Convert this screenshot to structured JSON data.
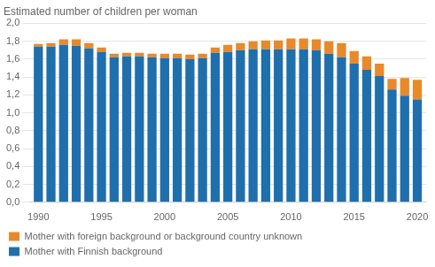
{
  "chart_data": {
    "type": "bar",
    "title": "Estimated number of children per woman",
    "stacked": true,
    "x": [
      1990,
      1991,
      1992,
      1993,
      1994,
      1995,
      1996,
      1997,
      1998,
      1999,
      2000,
      2001,
      2002,
      2003,
      2004,
      2005,
      2006,
      2007,
      2008,
      2009,
      2010,
      2011,
      2012,
      2013,
      2014,
      2015,
      2016,
      2017,
      2018,
      2019,
      2020
    ],
    "series": [
      {
        "name": "Mother with Finnish background",
        "color": "#1f6fad",
        "values": [
          1.74,
          1.74,
          1.76,
          1.75,
          1.72,
          1.68,
          1.62,
          1.63,
          1.63,
          1.62,
          1.61,
          1.61,
          1.6,
          1.61,
          1.67,
          1.68,
          1.7,
          1.71,
          1.71,
          1.71,
          1.71,
          1.71,
          1.7,
          1.66,
          1.62,
          1.55,
          1.48,
          1.41,
          1.26,
          1.19,
          1.15
        ]
      },
      {
        "name": "Mother with foreign background or background country unknown",
        "color": "#e8892a",
        "values": [
          0.03,
          0.04,
          0.06,
          0.07,
          0.06,
          0.05,
          0.04,
          0.04,
          0.04,
          0.04,
          0.05,
          0.05,
          0.05,
          0.05,
          0.06,
          0.08,
          0.08,
          0.09,
          0.1,
          0.1,
          0.12,
          0.12,
          0.12,
          0.14,
          0.16,
          0.14,
          0.15,
          0.14,
          0.12,
          0.2,
          0.22
        ]
      }
    ],
    "xlim": [
      1989.3,
      2020.7
    ],
    "xticks": [
      1990,
      1995,
      2000,
      2005,
      2010,
      2015,
      2020
    ],
    "ylim": [
      0.0,
      2.0
    ],
    "yticks": [
      {
        "value": 0.0,
        "label": "0,0"
      },
      {
        "value": 0.2,
        "label": "0,2"
      },
      {
        "value": 0.4,
        "label": "0,4"
      },
      {
        "value": 0.6,
        "label": "0,6"
      },
      {
        "value": 0.8,
        "label": "0,8"
      },
      {
        "value": 1.0,
        "label": "1,0"
      },
      {
        "value": 1.2,
        "label": "1,2"
      },
      {
        "value": 1.4,
        "label": "1,4"
      },
      {
        "value": 1.6,
        "label": "1,6"
      },
      {
        "value": 1.8,
        "label": "1,8"
      },
      {
        "value": 2.0,
        "label": "2,0"
      }
    ],
    "grid": true,
    "legend": "bottom left"
  }
}
